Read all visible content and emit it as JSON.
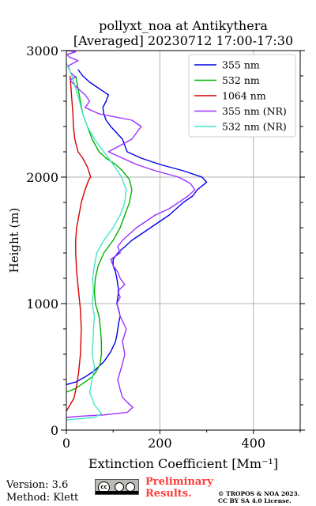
{
  "chart_data": {
    "type": "line",
    "title": "pollyxt_noa at Antikythera",
    "subtitle": "[Averaged] 20230712 17:00-17:30",
    "xlabel": "Extinction Coefficient [Mm⁻¹]",
    "ylabel": "Height (m)",
    "xlim": [
      0,
      500
    ],
    "ylim": [
      0,
      3000
    ],
    "xticks": [
      "0",
      "200",
      "400"
    ],
    "yticks": [
      "0",
      "1000",
      "2000",
      "3000"
    ],
    "grid": true,
    "legend_position": "top-right",
    "series": [
      {
        "name": "355 nm",
        "color": "#0000e6",
        "x": [
          0,
          20,
          40,
          60,
          80,
          95,
          105,
          108,
          110,
          112,
          115,
          112,
          108,
          110,
          112,
          110,
          108,
          105,
          100,
          100,
          110,
          140,
          180,
          220,
          250,
          270,
          280,
          290,
          300,
          290,
          250,
          200,
          160,
          130,
          120,
          95,
          85,
          80,
          78,
          85,
          90,
          70,
          50,
          35,
          25
        ],
        "y": [
          360,
          380,
          420,
          470,
          540,
          620,
          700,
          750,
          800,
          850,
          900,
          950,
          1000,
          1050,
          1100,
          1150,
          1200,
          1250,
          1300,
          1350,
          1400,
          1500,
          1600,
          1700,
          1800,
          1850,
          1900,
          1930,
          1960,
          2000,
          2050,
          2100,
          2150,
          2200,
          2300,
          2400,
          2450,
          2500,
          2550,
          2600,
          2650,
          2700,
          2750,
          2800,
          2850
        ]
      },
      {
        "name": "532 nm",
        "color": "#00b300",
        "x": [
          0,
          20,
          40,
          55,
          65,
          72,
          75,
          75,
          73,
          70,
          62,
          60,
          62,
          68,
          80,
          100,
          115,
          125,
          135,
          140,
          135,
          120,
          105,
          85,
          70,
          55,
          45,
          35,
          30,
          25,
          20
        ],
        "y": [
          300,
          330,
          380,
          420,
          470,
          520,
          600,
          700,
          800,
          900,
          1000,
          1100,
          1200,
          1300,
          1400,
          1500,
          1600,
          1700,
          1800,
          1900,
          1980,
          2050,
          2100,
          2150,
          2200,
          2300,
          2400,
          2500,
          2600,
          2700,
          2800
        ]
      },
      {
        "name": "1064 nm",
        "color": "#d40000",
        "x": [
          0,
          8,
          16,
          22,
          26,
          30,
          32,
          30,
          26,
          22,
          20,
          20,
          22,
          27,
          32,
          40,
          48,
          52,
          45,
          35,
          25,
          18,
          15,
          14,
          12,
          10,
          8
        ],
        "y": [
          150,
          200,
          250,
          350,
          450,
          600,
          800,
          950,
          1100,
          1250,
          1400,
          1500,
          1600,
          1700,
          1800,
          1900,
          1980,
          2000,
          2080,
          2150,
          2200,
          2300,
          2400,
          2500,
          2600,
          2700,
          2800
        ]
      },
      {
        "name": "355 nm (NR)",
        "color": "#9b30ff",
        "x": [
          0,
          30,
          80,
          130,
          142,
          130,
          120,
          115,
          110,
          118,
          125,
          120,
          128,
          115,
          108,
          115,
          110,
          125,
          115,
          110,
          100,
          95,
          115,
          110,
          120,
          150,
          190,
          220,
          240,
          260,
          275,
          265,
          240,
          190,
          150,
          120,
          90,
          140,
          160,
          140,
          70,
          40,
          50,
          40,
          25,
          12,
          8,
          20,
          8,
          4,
          25,
          6,
          2,
          20,
          4,
          0
        ],
        "y": [
          100,
          110,
          120,
          140,
          180,
          220,
          260,
          320,
          400,
          500,
          600,
          700,
          800,
          900,
          1000,
          1050,
          1100,
          1150,
          1200,
          1250,
          1300,
          1350,
          1400,
          1450,
          1500,
          1600,
          1700,
          1750,
          1800,
          1850,
          1900,
          1950,
          2000,
          2050,
          2100,
          2150,
          2200,
          2300,
          2400,
          2450,
          2500,
          2550,
          2600,
          2650,
          2700,
          2750,
          2770,
          2790,
          2830,
          2880,
          2920,
          2950,
          2970,
          2990,
          3000,
          3000
        ]
      },
      {
        "name": "532 nm (NR)",
        "color": "#40e6c8",
        "x": [
          0,
          30,
          60,
          75,
          60,
          50,
          55,
          60,
          55,
          57,
          58,
          60,
          55,
          58,
          56,
          60,
          65,
          80,
          100,
          115,
          125,
          128,
          118,
          100,
          80,
          60,
          45,
          35,
          28,
          20,
          12,
          6,
          0
        ],
        "y": [
          80,
          90,
          100,
          130,
          200,
          300,
          400,
          500,
          600,
          700,
          800,
          900,
          1000,
          1100,
          1200,
          1300,
          1400,
          1500,
          1600,
          1700,
          1800,
          1900,
          2000,
          2100,
          2200,
          2300,
          2400,
          2500,
          2600,
          2700,
          2800,
          2850,
          2900
        ]
      }
    ]
  },
  "footer": {
    "version": "Version: 3.6",
    "method": "Method: Klett",
    "license_badge": "cc by sa",
    "preliminary_line1": "Preliminary",
    "preliminary_line2": "Results.",
    "copyright_line1": "© TROPOS & NOA 2023.",
    "copyright_line2": "CC BY SA 4.0 License."
  }
}
